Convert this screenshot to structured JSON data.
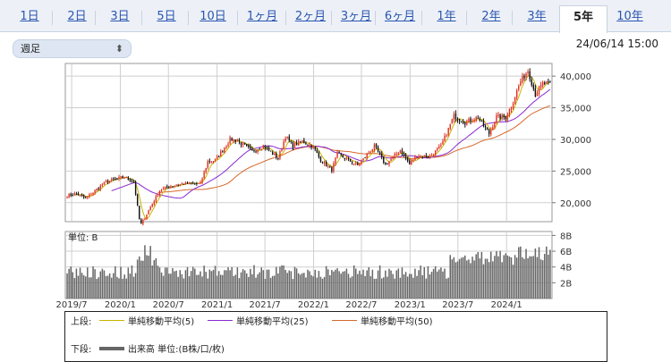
{
  "tabs": [
    {
      "label": "1日",
      "active": false
    },
    {
      "label": "2日",
      "active": false
    },
    {
      "label": "3日",
      "active": false
    },
    {
      "label": "5日",
      "active": false
    },
    {
      "label": "10日",
      "active": false
    },
    {
      "label": "1ヶ月",
      "active": false
    },
    {
      "label": "2ヶ月",
      "active": false
    },
    {
      "label": "3ヶ月",
      "active": false
    },
    {
      "label": "6ヶ月",
      "active": false
    },
    {
      "label": "1年",
      "active": false
    },
    {
      "label": "2年",
      "active": false
    },
    {
      "label": "3年",
      "active": false
    },
    {
      "label": "5年",
      "active": true
    },
    {
      "label": "10年",
      "active": false
    }
  ],
  "period_select": {
    "value": "週足"
  },
  "timestamp": "24/06/14 15:00",
  "colors": {
    "up": "#e03020",
    "down": "#111111",
    "ma5": "#c8b400",
    "ma25": "#8a2ad0",
    "ma50": "#d8682a",
    "volume": "#666666",
    "grid": "#cfcfcf"
  },
  "chart_data": {
    "type": "candlestick",
    "timeframe": "weekly",
    "price_ylim": [
      17000,
      42000
    ],
    "price_ticks": [
      20000,
      25000,
      30000,
      35000,
      40000
    ],
    "price_tick_labels": [
      "20,000",
      "25,000",
      "30,000",
      "35,000",
      "40,000"
    ],
    "volume_ylim": [
      0,
      8.5
    ],
    "volume_ticks": [
      2,
      4,
      6,
      8
    ],
    "volume_tick_labels": [
      "2B",
      "4B",
      "6B",
      "8B"
    ],
    "volume_unit_label": "単位: B",
    "x_tick_labels": [
      "2019/7",
      "2020/1",
      "2020/7",
      "2021/1",
      "2021/7",
      "2022/1",
      "2022/7",
      "2023/1",
      "2023/7",
      "2024/1"
    ],
    "x_start": "2019/6",
    "x_end": "2024/6",
    "close_anchors": [
      [
        "2019-06-14",
        21100
      ],
      [
        "2019-07-19",
        21400
      ],
      [
        "2019-08-23",
        20700
      ],
      [
        "2019-09-27",
        21900
      ],
      [
        "2019-11-08",
        23300
      ],
      [
        "2019-12-20",
        23800
      ],
      [
        "2020-01-17",
        24000
      ],
      [
        "2020-02-21",
        23400
      ],
      [
        "2020-03-13",
        17400
      ],
      [
        "2020-03-20",
        16600
      ],
      [
        "2020-04-24",
        19300
      ],
      [
        "2020-05-29",
        21900
      ],
      [
        "2020-06-26",
        22500
      ],
      [
        "2020-08-28",
        23000
      ],
      [
        "2020-10-30",
        23000
      ],
      [
        "2020-11-27",
        26500
      ],
      [
        "2020-12-25",
        26700
      ],
      [
        "2021-02-12",
        29500
      ],
      [
        "2021-02-19",
        30000
      ],
      [
        "2021-03-19",
        29800
      ],
      [
        "2021-05-14",
        28100
      ],
      [
        "2021-06-25",
        29000
      ],
      [
        "2021-08-20",
        27000
      ],
      [
        "2021-09-17",
        30500
      ],
      [
        "2021-10-15",
        29000
      ],
      [
        "2021-11-19",
        29700
      ],
      [
        "2021-12-31",
        28800
      ],
      [
        "2022-01-28",
        26700
      ],
      [
        "2022-03-11",
        25200
      ],
      [
        "2022-04-01",
        27700
      ],
      [
        "2022-06-17",
        25900
      ],
      [
        "2022-08-19",
        28900
      ],
      [
        "2022-09-30",
        26000
      ],
      [
        "2022-11-25",
        28300
      ],
      [
        "2022-12-30",
        26100
      ],
      [
        "2023-01-27",
        27400
      ],
      [
        "2023-03-17",
        27300
      ],
      [
        "2023-04-28",
        28900
      ],
      [
        "2023-06-16",
        33700
      ],
      [
        "2023-07-28",
        32700
      ],
      [
        "2023-09-15",
        33500
      ],
      [
        "2023-10-27",
        30900
      ],
      [
        "2023-11-24",
        33600
      ],
      [
        "2023-12-29",
        33500
      ],
      [
        "2024-01-26",
        36000
      ],
      [
        "2024-02-22",
        39100
      ],
      [
        "2024-03-22",
        40900
      ],
      [
        "2024-04-19",
        37100
      ],
      [
        "2024-05-17",
        38800
      ],
      [
        "2024-06-14",
        38800
      ]
    ],
    "legend": {
      "upper_label": "上段:",
      "lower_label": "下段:",
      "ma": [
        {
          "name": "単純移動平均(5)",
          "period": 5
        },
        {
          "name": "単純移動平均(25)",
          "period": 25
        },
        {
          "name": "単純移動平均(50)",
          "period": 50
        }
      ],
      "volume_name": "出来高 単位:(B株/口/枚)"
    }
  }
}
